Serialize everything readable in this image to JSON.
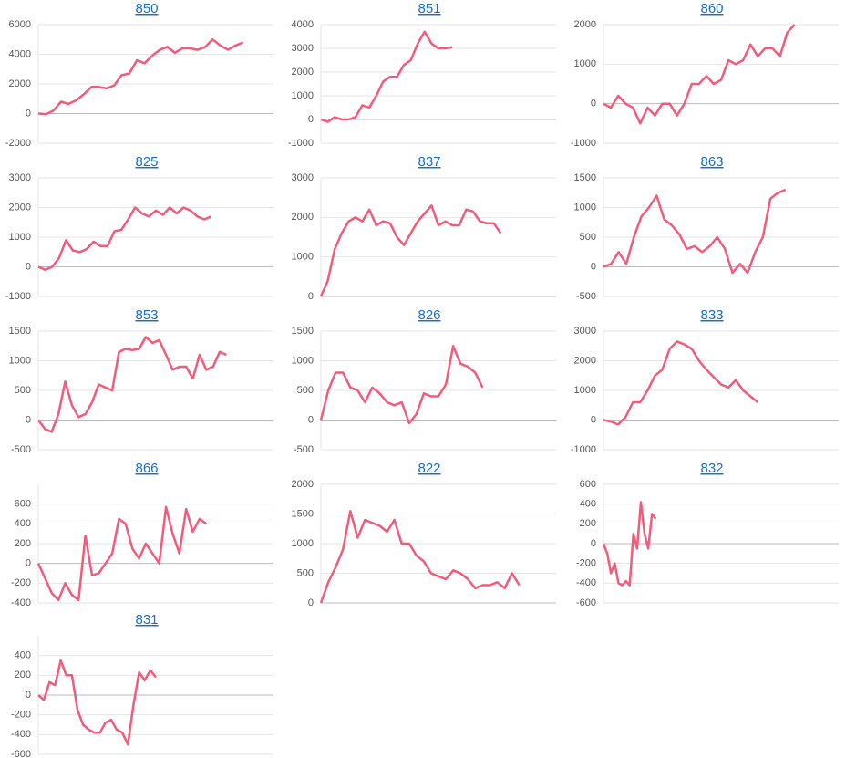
{
  "chart_data": [
    {
      "type": "line",
      "title": "850",
      "color": "#f45b7a",
      "xlim": [
        0,
        31
      ],
      "ylim": [
        -2000,
        6000
      ],
      "yticks": [
        -2000,
        0,
        2000,
        4000,
        6000
      ],
      "values": [
        0,
        -50,
        200,
        800,
        650,
        900,
        1300,
        1800,
        1800,
        1700,
        1900,
        2600,
        2700,
        3600,
        3400,
        3900,
        4300,
        4500,
        4100,
        4400,
        4400,
        4300,
        4500,
        5000,
        4600,
        4300,
        4600,
        4800
      ]
    },
    {
      "type": "line",
      "title": "851",
      "color": "#f45b7a",
      "xlim": [
        0,
        34
      ],
      "ylim": [
        -1000,
        4000
      ],
      "yticks": [
        -1000,
        0,
        1000,
        2000,
        3000,
        4000
      ],
      "values": [
        0,
        -100,
        100,
        0,
        0,
        100,
        600,
        500,
        1000,
        1600,
        1800,
        1800,
        2300,
        2500,
        3200,
        3700,
        3200,
        3000,
        3000,
        3050
      ]
    },
    {
      "type": "line",
      "title": "860",
      "color": "#f45b7a",
      "xlim": [
        0,
        32
      ],
      "ylim": [
        -1000,
        2000
      ],
      "yticks": [
        -1000,
        0,
        1000,
        2000
      ],
      "values": [
        0,
        -100,
        200,
        0,
        -100,
        -500,
        -100,
        -300,
        0,
        0,
        -300,
        0,
        500,
        500,
        700,
        500,
        600,
        1100,
        1000,
        1100,
        1500,
        1200,
        1400,
        1400,
        1200,
        1800,
        2000
      ]
    },
    {
      "type": "line",
      "title": "825",
      "color": "#f45b7a",
      "xlim": [
        0,
        34
      ],
      "ylim": [
        -1000,
        3000
      ],
      "yticks": [
        -1000,
        0,
        1000,
        2000,
        3000
      ],
      "values": [
        0,
        -100,
        0,
        300,
        900,
        550,
        500,
        600,
        850,
        700,
        700,
        1200,
        1250,
        1600,
        2000,
        1800,
        1700,
        1900,
        1750,
        2000,
        1800,
        2000,
        1900,
        1700,
        1600,
        1700
      ]
    },
    {
      "type": "line",
      "title": "837",
      "color": "#f45b7a",
      "xlim": [
        0,
        34
      ],
      "ylim": [
        0,
        3000
      ],
      "yticks": [
        0,
        1000,
        2000,
        3000
      ],
      "values": [
        0,
        400,
        1200,
        1600,
        1900,
        2000,
        1900,
        2200,
        1800,
        1900,
        1850,
        1500,
        1300,
        1600,
        1900,
        2100,
        2300,
        1800,
        1900,
        1800,
        1800,
        2200,
        2150,
        1900,
        1850,
        1850,
        1600
      ]
    },
    {
      "type": "line",
      "title": "863",
      "color": "#f45b7a",
      "xlim": [
        0,
        31
      ],
      "ylim": [
        -500,
        1500
      ],
      "yticks": [
        -500,
        0,
        500,
        1000,
        1500
      ],
      "values": [
        0,
        50,
        250,
        50,
        500,
        850,
        1000,
        1200,
        800,
        700,
        550,
        300,
        350,
        250,
        350,
        500,
        300,
        -100,
        50,
        -100,
        250,
        500,
        1150,
        1250,
        1300
      ]
    },
    {
      "type": "line",
      "title": "853",
      "color": "#f45b7a",
      "xlim": [
        0,
        35
      ],
      "ylim": [
        -500,
        1500
      ],
      "yticks": [
        -500,
        0,
        500,
        1000,
        1500
      ],
      "values": [
        0,
        -150,
        -200,
        100,
        650,
        250,
        50,
        100,
        300,
        600,
        550,
        500,
        1150,
        1200,
        1180,
        1200,
        1400,
        1300,
        1350,
        1100,
        850,
        900,
        900,
        700,
        1100,
        850,
        900,
        1150,
        1100
      ]
    },
    {
      "type": "line",
      "title": "826",
      "color": "#f45b7a",
      "xlim": [
        0,
        32
      ],
      "ylim": [
        -500,
        1500
      ],
      "yticks": [
        -500,
        0,
        500,
        1000,
        1500
      ],
      "values": [
        0,
        500,
        800,
        800,
        550,
        500,
        300,
        550,
        450,
        300,
        250,
        300,
        -50,
        100,
        450,
        400,
        400,
        600,
        1250,
        950,
        900,
        800,
        550
      ]
    },
    {
      "type": "line",
      "title": "833",
      "color": "#f45b7a",
      "xlim": [
        0,
        32
      ],
      "ylim": [
        -1000,
        3000
      ],
      "yticks": [
        -1000,
        0,
        1000,
        2000,
        3000
      ],
      "values": [
        0,
        -50,
        -150,
        100,
        600,
        600,
        1000,
        1500,
        1700,
        2400,
        2650,
        2550,
        2400,
        2000,
        1700,
        1450,
        1200,
        1100,
        1350,
        1000,
        800,
        600
      ]
    },
    {
      "type": "line",
      "title": "866",
      "color": "#f45b7a",
      "xlim": [
        0,
        35
      ],
      "ylim": [
        -400,
        800
      ],
      "yticks": [
        -400,
        -200,
        0,
        200,
        400,
        600
      ],
      "values": [
        0,
        -150,
        -300,
        -370,
        -200,
        -320,
        -370,
        280,
        -120,
        -100,
        0,
        100,
        450,
        400,
        150,
        50,
        200,
        100,
        0,
        570,
        300,
        100,
        550,
        320,
        450,
        400
      ]
    },
    {
      "type": "line",
      "title": "822",
      "color": "#f45b7a",
      "xlim": [
        0,
        32
      ],
      "ylim": [
        0,
        2000
      ],
      "yticks": [
        0,
        500,
        1000,
        1500,
        2000
      ],
      "values": [
        0,
        350,
        600,
        900,
        1550,
        1100,
        1400,
        1350,
        1300,
        1200,
        1400,
        1000,
        1000,
        800,
        700,
        500,
        450,
        400,
        550,
        500,
        400,
        250,
        300,
        300,
        350,
        250,
        500,
        300
      ]
    },
    {
      "type": "line",
      "title": "832",
      "color": "#f45b7a",
      "xlim": [
        0,
        63
      ],
      "ylim": [
        -600,
        600
      ],
      "yticks": [
        -600,
        -400,
        -200,
        0,
        200,
        400,
        600
      ],
      "values": [
        0,
        -100,
        -300,
        -200,
        -400,
        -420,
        -380,
        -420,
        100,
        -50,
        420,
        100,
        -50,
        300,
        250
      ]
    },
    {
      "type": "line",
      "title": "831",
      "color": "#f45b7a",
      "xlim": [
        0,
        42
      ],
      "ylim": [
        -600,
        600
      ],
      "yticks": [
        -600,
        -400,
        -200,
        0,
        200,
        400
      ],
      "values": [
        0,
        -50,
        130,
        100,
        350,
        200,
        200,
        -150,
        -300,
        -350,
        -380,
        -380,
        -280,
        -250,
        -350,
        -380,
        -500,
        -100,
        230,
        150,
        250,
        180
      ]
    }
  ]
}
